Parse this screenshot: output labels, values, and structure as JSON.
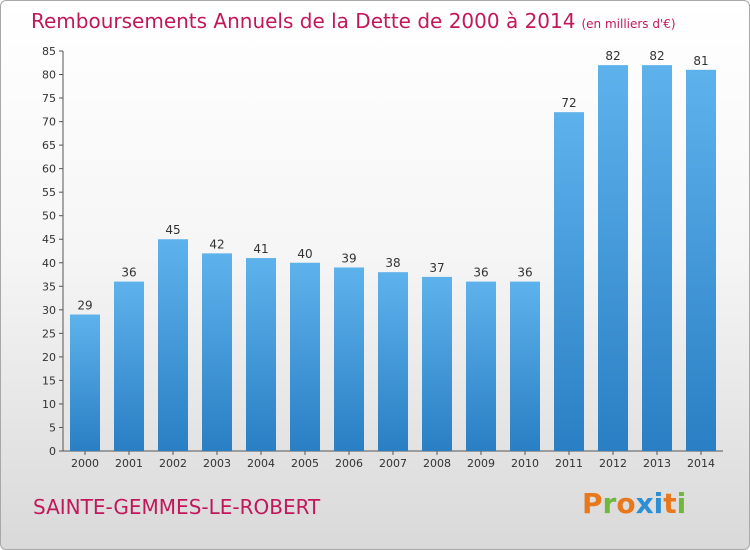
{
  "title": "Remboursements Annuels de la Dette de 2000 à 2014",
  "unit": "(en milliers d'€)",
  "place": "SAINTE-GEMMES-LE-ROBERT",
  "logo": "Proxiti",
  "colors": {
    "title": "#c2185b",
    "bar_light": "#5eb2ec",
    "bar_dark": "#2a7fc4",
    "logo_letters": [
      "#e8781e",
      "#6fb83c",
      "#e8781e",
      "#2c8fd6",
      "#2c8fd6",
      "#e8781e",
      "#6fb83c"
    ]
  },
  "chart_data": {
    "type": "bar",
    "title": "Remboursements Annuels de la Dette de 2000 à 2014",
    "subtitle": "(en milliers d'€)",
    "categories": [
      "2000",
      "2001",
      "2002",
      "2003",
      "2004",
      "2005",
      "2006",
      "2007",
      "2008",
      "2009",
      "2010",
      "2011",
      "2012",
      "2013",
      "2014"
    ],
    "values": [
      29,
      36,
      45,
      42,
      41,
      40,
      39,
      38,
      37,
      36,
      36,
      72,
      82,
      82,
      81
    ],
    "ylim": [
      0,
      85
    ],
    "yticks": [
      0,
      5,
      10,
      15,
      20,
      25,
      30,
      35,
      40,
      45,
      50,
      55,
      60,
      65,
      70,
      75,
      80,
      85
    ],
    "grid": false,
    "xlabel": "",
    "ylabel": ""
  }
}
